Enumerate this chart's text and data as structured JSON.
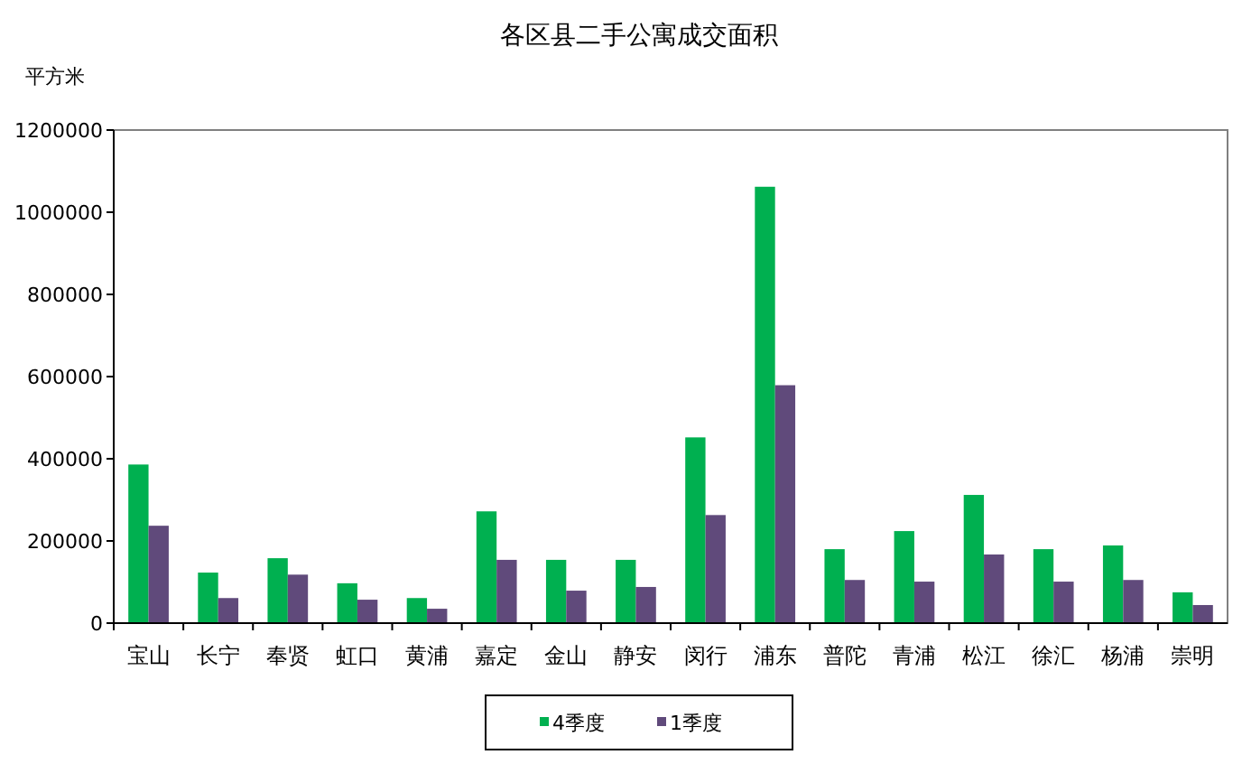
{
  "chart_data": {
    "type": "bar",
    "title": "各区县二手公寓成交面积",
    "ylabel": "平方米",
    "categories": [
      "宝山",
      "长宁",
      "奉贤",
      "虹口",
      "黄浦",
      "嘉定",
      "金山",
      "静安",
      "闵行",
      "浦东",
      "普陀",
      "青浦",
      "松江",
      "徐汇",
      "杨浦",
      "崇明"
    ],
    "series": [
      {
        "name": "4季度",
        "color": "#00b050",
        "values": [
          386000,
          123000,
          158000,
          97000,
          61000,
          272000,
          154000,
          154000,
          452000,
          1062000,
          180000,
          224000,
          312000,
          180000,
          189000,
          75000
        ]
      },
      {
        "name": "1季度",
        "color": "#604a7b",
        "values": [
          237000,
          61000,
          118000,
          57000,
          35000,
          154000,
          79000,
          88000,
          263000,
          579000,
          105000,
          101000,
          167000,
          101000,
          105000,
          44000
        ]
      }
    ],
    "ylim": [
      0,
      1200000
    ],
    "yticks": [
      0,
      200000,
      400000,
      600000,
      800000,
      1000000,
      1200000
    ],
    "grid": false,
    "legend": "bottom"
  }
}
